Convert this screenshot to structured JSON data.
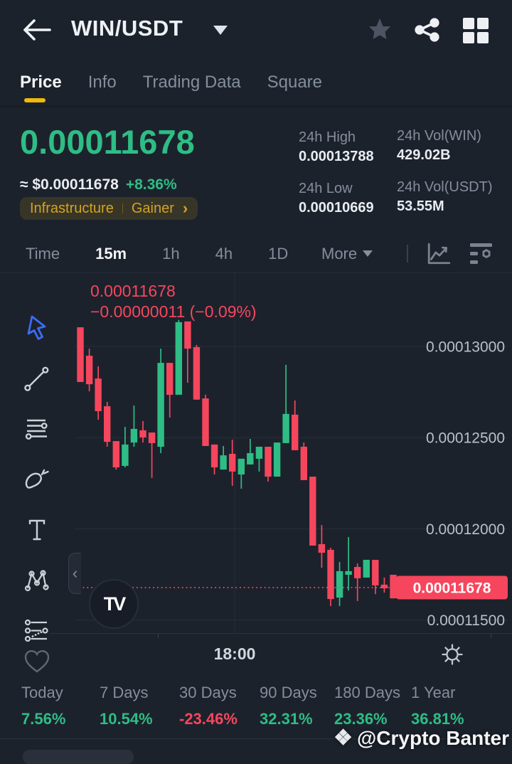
{
  "header": {
    "title": "WIN/USDT",
    "back_icon": "arrow-left-icon",
    "star_icon": "star-icon",
    "share_icon": "share-icon",
    "grid_icon": "grid-icon"
  },
  "tabs": [
    {
      "label": "Price",
      "active": true
    },
    {
      "label": "Info",
      "active": false
    },
    {
      "label": "Trading Data",
      "active": false
    },
    {
      "label": "Square",
      "active": false
    }
  ],
  "price_panel": {
    "price": "0.00011678",
    "approx_fiat": "≈ $0.00011678",
    "change_24h": "+8.36%",
    "category_tag": "Infrastructure",
    "movement_tag": "Gainer"
  },
  "stats_24h": {
    "high_label": "24h High",
    "high_value": "0.00013788",
    "low_label": "24h Low",
    "low_value": "0.00010669",
    "vol_base_label": "24h Vol(WIN)",
    "vol_base_value": "429.02B",
    "vol_quote_label": "24h Vol(USDT)",
    "vol_quote_value": "53.55M"
  },
  "intervals": {
    "items": [
      "Time",
      "15m",
      "1h",
      "4h",
      "1D"
    ],
    "selected": "15m",
    "more_label": "More"
  },
  "chart_data": {
    "type": "candlestick",
    "symbol": "WIN/USDT",
    "interval": "15m",
    "legend_price": "0.00011678",
    "legend_change": "−0.00000011 (−0.09%)",
    "up_color": "#2ebd85",
    "down_color": "#f6465d",
    "grid": true,
    "y_ticks": [
      {
        "label": "0.00013000",
        "price": 0.00013
      },
      {
        "label": "0.00012500",
        "price": 0.000125
      },
      {
        "label": "0.00012000",
        "price": 0.00012
      },
      {
        "label": "0.00011500",
        "price": 0.000115
      }
    ],
    "last_price": {
      "label": "0.00011678",
      "price": 0.00011678
    },
    "x_axis_label": "18:00",
    "candles": [
      [
        0.00013105,
        0.00013105,
        0.00012805,
        0.00012805
      ],
      [
        0.00012949,
        0.00012988,
        0.00012754,
        0.00012793
      ],
      [
        0.00012824,
        0.00012891,
        0.00012598,
        0.00012645
      ],
      [
        0.00012672,
        0.00012696,
        0.0001245,
        0.00012477
      ],
      [
        0.00012481,
        0.00012481,
        0.00012325,
        0.00012337
      ],
      [
        0.00012345,
        0.00012559,
        0.00012337,
        0.00012462
      ],
      [
        0.00012473,
        0.00012676,
        0.0001245,
        0.00012548
      ],
      [
        0.0001254,
        0.00012591,
        0.00012473,
        0.00012501
      ],
      [
        0.00012528,
        0.00012528,
        0.00012279,
        0.0001247
      ],
      [
        0.0001245,
        0.00012988,
        0.00012415,
        0.0001291
      ],
      [
        0.0001291,
        0.0001291,
        0.0001261,
        0.00012735
      ],
      [
        0.00012735,
        0.00013145,
        0.00012735,
        0.00013133
      ],
      [
        0.00013137,
        0.00013137,
        0.00012801,
        0.00012988
      ],
      [
        0.00012996,
        0.00013008,
        0.00012708,
        0.00012708
      ],
      [
        0.00012715,
        0.00012735,
        0.00012454,
        0.00012454
      ],
      [
        0.00012462,
        0.00012462,
        0.00012298,
        0.00012337
      ],
      [
        0.00012325,
        0.00012454,
        0.00012325,
        0.00012403
      ],
      [
        0.00012411,
        0.00012489,
        0.00012236,
        0.00012314
      ],
      [
        0.00012298,
        0.00012384,
        0.0001222,
        0.00012384
      ],
      [
        0.00012353,
        0.00012493,
        0.00012353,
        0.00012415
      ],
      [
        0.00012384,
        0.0001245,
        0.00012314,
        0.0001245
      ],
      [
        0.0001245,
        0.0001245,
        0.00012259,
        0.00012286
      ],
      [
        0.00012286,
        0.00012473,
        0.00012286,
        0.00012473
      ],
      [
        0.0001247,
        0.00012899,
        0.0001247,
        0.0001263
      ],
      [
        0.00012626,
        0.00012704,
        0.00012431,
        0.00012431
      ],
      [
        0.0001245,
        0.00012473,
        0.00012267,
        0.00012267
      ],
      [
        0.00012286,
        0.00012286,
        0.00011908,
        0.00011908
      ],
      [
        0.00011916,
        0.00012021,
        0.00011787,
        0.00011869
      ],
      [
        0.00011885,
        0.00011896,
        0.00011576,
        0.00011615
      ],
      [
        0.00011623,
        0.00011818,
        0.00011576,
        0.00011768
      ],
      [
        0.00011748,
        0.00011955,
        0.00011662,
        0.00011768
      ],
      [
        0.00011791,
        0.0001181,
        0.00011604,
        0.00011729
      ],
      [
        0.00011733,
        0.0001183,
        0.00011733,
        0.0001183
      ],
      [
        0.0001183,
        0.0001183,
        0.00011642,
        0.0001169
      ],
      [
        0.00011694,
        0.00011733,
        0.0001165,
        0.00011674
      ],
      [
        0.00011748,
        0.00011748,
        0.00011619,
        0.00011619
      ]
    ]
  },
  "drawing_tools": [
    "cursor",
    "trend-line",
    "fib-retracement",
    "brush",
    "text",
    "xabcd-pattern",
    "forecast",
    "favorites-heart"
  ],
  "time_axis": {
    "label": "18:00"
  },
  "performance": {
    "columns": [
      {
        "label": "Today",
        "value": "7.56%",
        "direction": "up"
      },
      {
        "label": "7 Days",
        "value": "10.54%",
        "direction": "up"
      },
      {
        "label": "30 Days",
        "value": "-23.46%",
        "direction": "down"
      },
      {
        "label": "90 Days",
        "value": "32.31%",
        "direction": "up"
      },
      {
        "label": "180 Days",
        "value": "23.36%",
        "direction": "up"
      },
      {
        "label": "1 Year",
        "value": "36.81%",
        "direction": "up"
      }
    ]
  },
  "watermark": {
    "icon": "binance-diamond-icon",
    "text": "@Crypto Banter"
  },
  "colors": {
    "up": "#2ebd85",
    "down": "#f6465d",
    "accent_yellow": "#f0b90b",
    "tag_text": "#d2a325",
    "last_price_tag_bg": "#f6465d"
  }
}
